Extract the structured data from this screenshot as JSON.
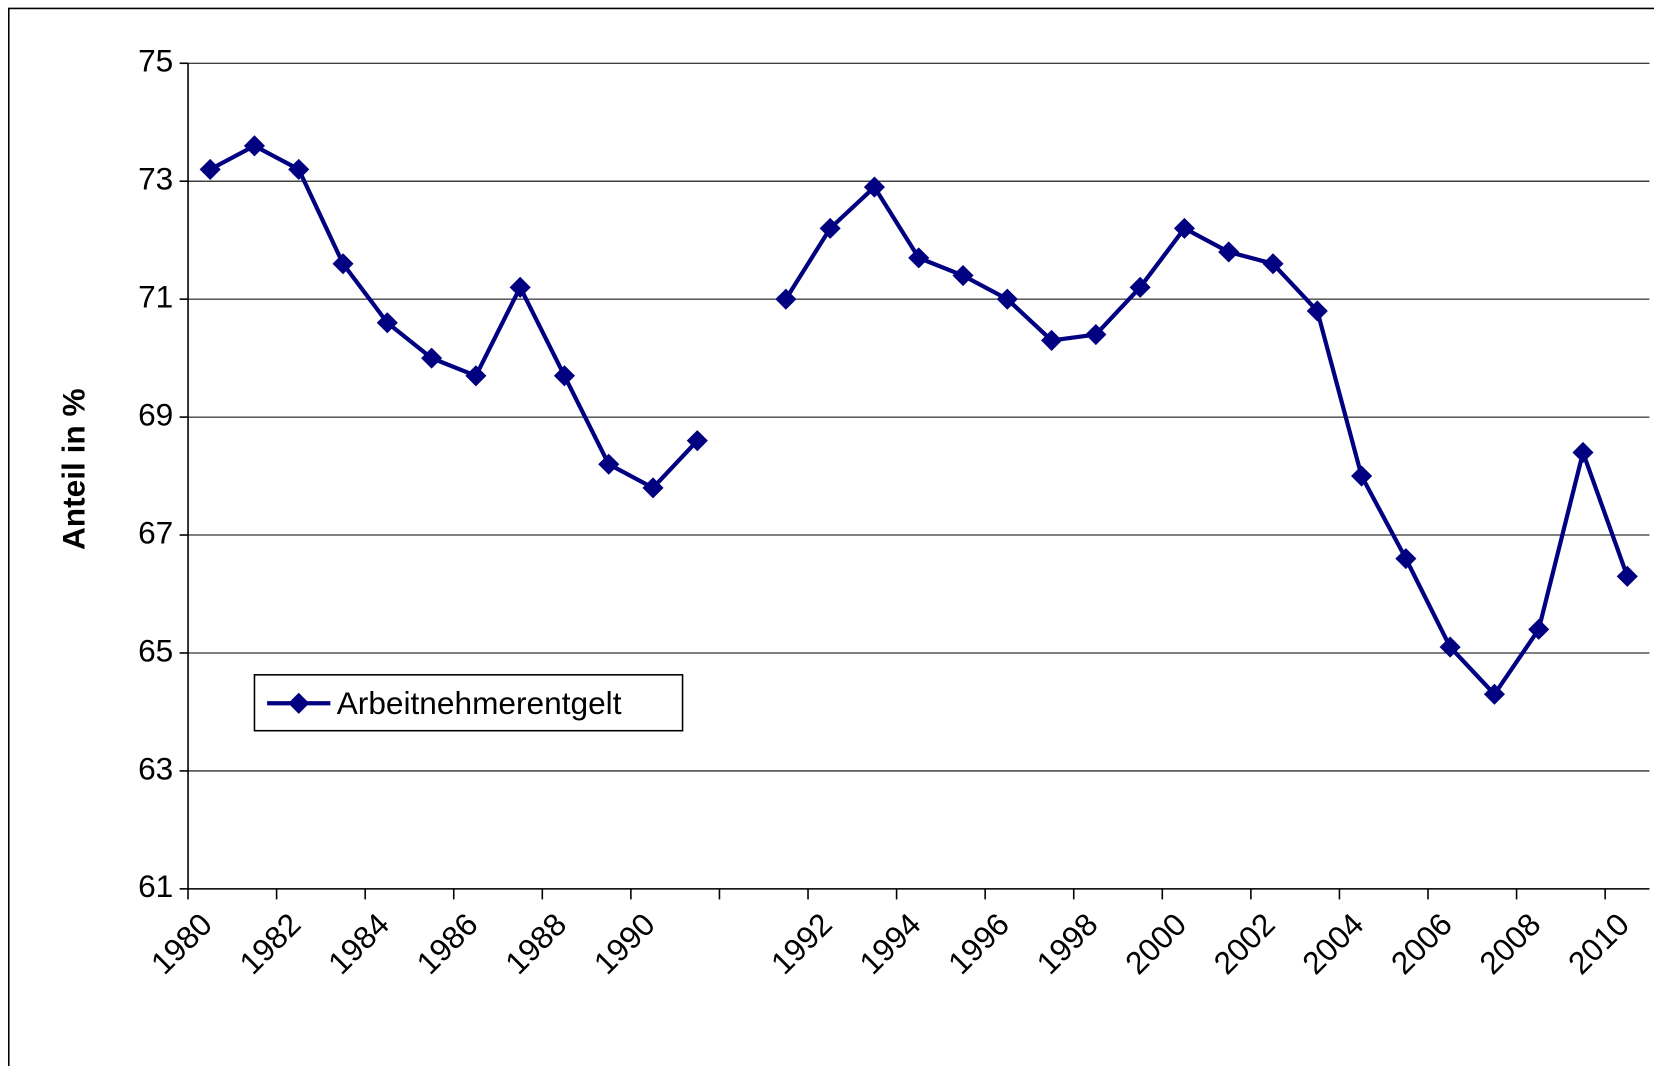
{
  "chart_data": {
    "type": "line",
    "y_label": "Anteil in %",
    "categories": [
      "1980",
      null,
      "1982",
      null,
      "1984",
      null,
      "1986",
      null,
      "1988",
      null,
      "1990",
      null,
      null,
      null,
      "1992",
      null,
      "1994",
      null,
      "1996",
      null,
      "1998",
      null,
      "2000",
      null,
      "2002",
      null,
      "2004",
      null,
      "2006",
      null,
      "2008",
      null,
      "2010"
    ],
    "series": [
      {
        "name": "Arbeitnehmerentgelt",
        "color": "#000080",
        "values": [
          73.2,
          73.6,
          73.2,
          71.6,
          70.6,
          70.0,
          69.7,
          71.2,
          69.7,
          68.2,
          67.8,
          68.6,
          null,
          71.0,
          72.2,
          72.9,
          71.7,
          71.4,
          71.0,
          70.3,
          70.4,
          71.2,
          72.2,
          71.8,
          71.6,
          70.8,
          68.0,
          66.6,
          65.1,
          64.3,
          65.4,
          68.4,
          66.3
        ]
      }
    ],
    "ylim": [
      61,
      75
    ],
    "yticks": [
      61,
      63,
      65,
      67,
      69,
      71,
      73,
      75
    ],
    "grid": true,
    "legend": "lower left"
  }
}
